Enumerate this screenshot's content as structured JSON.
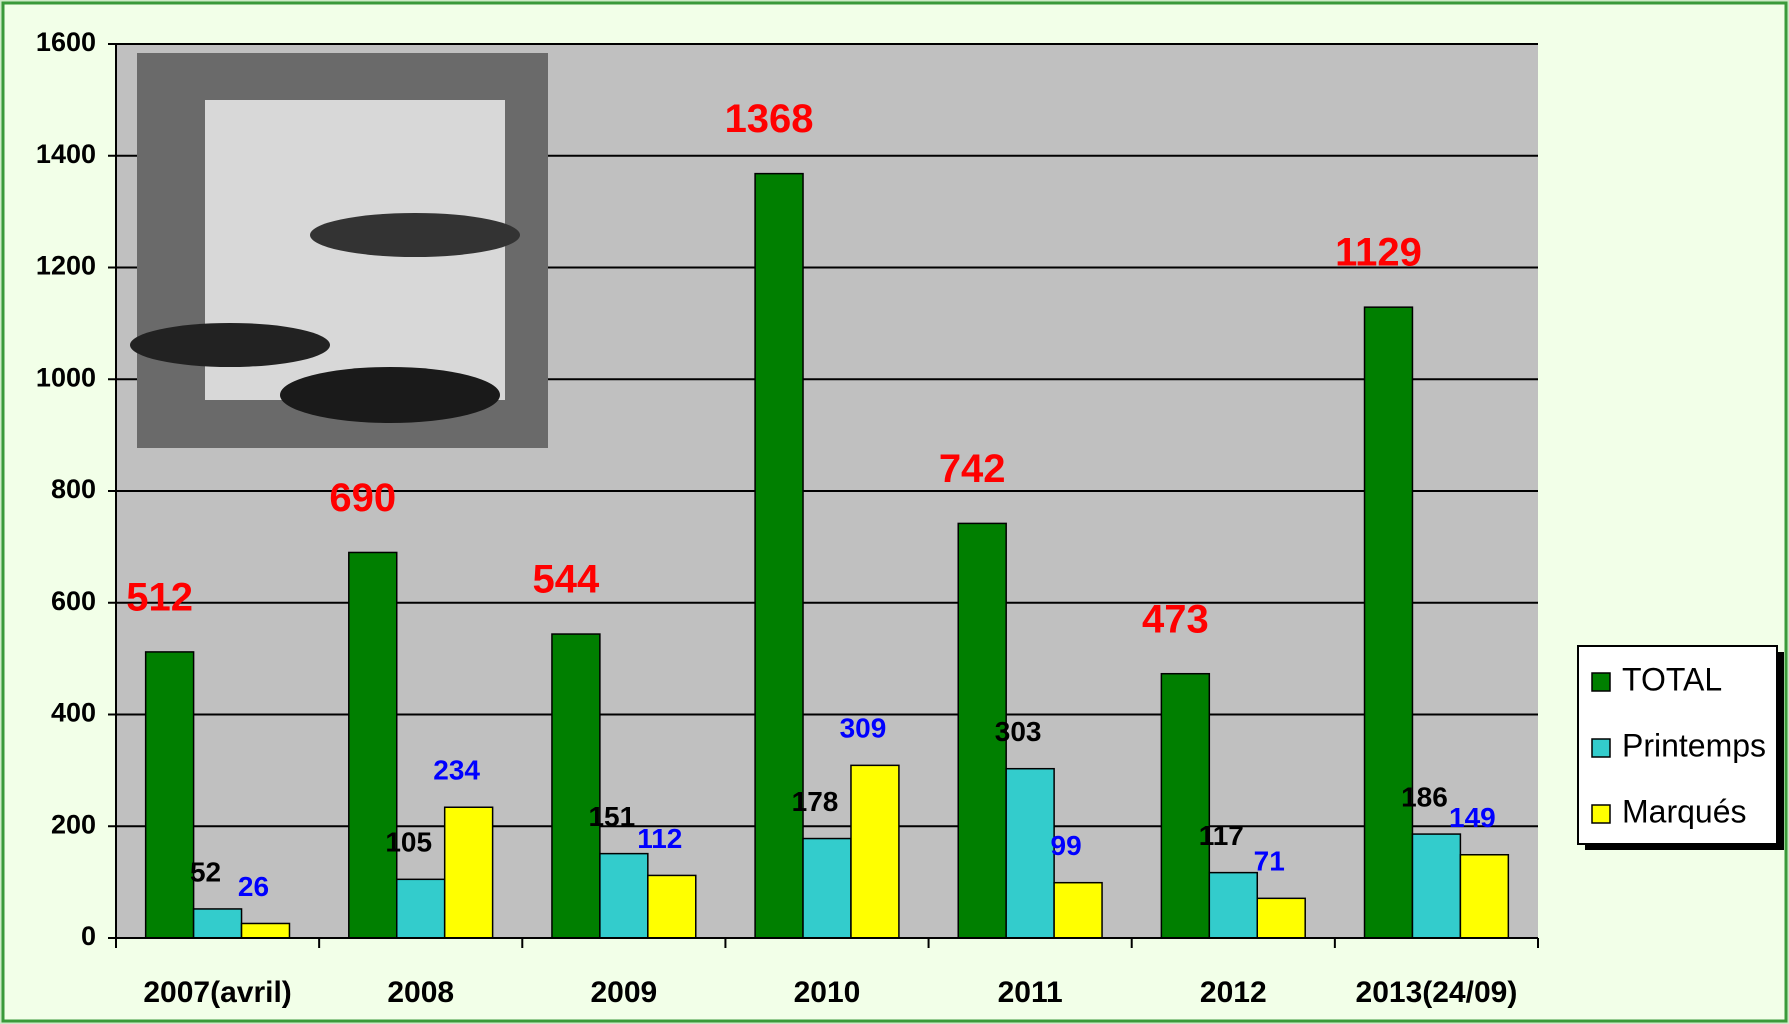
{
  "chart_data": {
    "type": "bar",
    "categories": [
      "2007(avril)",
      "2008",
      "2009",
      "2010",
      "2011",
      "2012",
      "2013(24/09)"
    ],
    "series": [
      {
        "name": "TOTAL",
        "color": "#007f00",
        "label_color": "#ff0000",
        "values": [
          512,
          690,
          544,
          1368,
          742,
          473,
          1129
        ]
      },
      {
        "name": "Printemps",
        "color": "#33cccc",
        "label_color": "#000000",
        "values": [
          52,
          105,
          151,
          178,
          303,
          117,
          186
        ]
      },
      {
        "name": "Marqués",
        "color": "#ffff00",
        "label_color": "#0000ff",
        "values": [
          26,
          234,
          112,
          309,
          99,
          71,
          149
        ]
      }
    ],
    "ylim": [
      0,
      1600
    ],
    "yticks": [
      0,
      200,
      400,
      600,
      800,
      1000,
      1200,
      1400,
      1600
    ],
    "grid": true,
    "legend": "right"
  }
}
